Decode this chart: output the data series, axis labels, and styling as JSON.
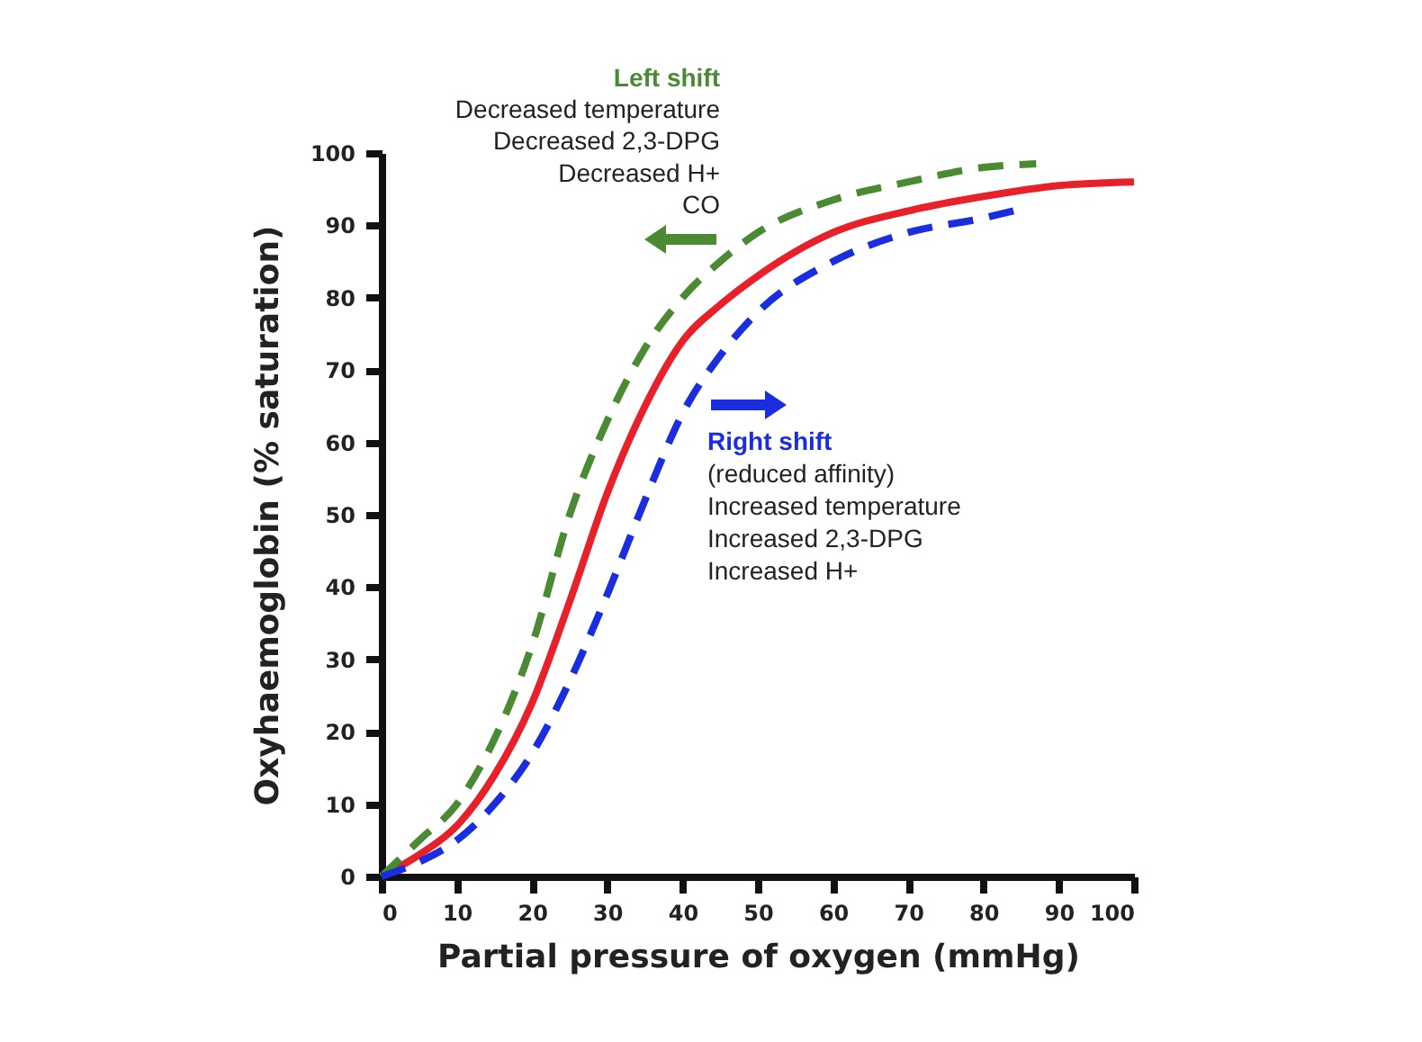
{
  "chart_data": {
    "type": "line",
    "xlabel": "Partial pressure of oxygen (mmHg)",
    "ylabel": "Oxyhaemoglobin (% saturation)",
    "xlim": [
      0,
      100
    ],
    "xticks": [
      0,
      10,
      20,
      30,
      40,
      50,
      60,
      70,
      80,
      90,
      100
    ],
    "ylim": [
      0,
      100
    ],
    "yticks": [
      0,
      10,
      20,
      30,
      40,
      50,
      60,
      70,
      80,
      90,
      100
    ],
    "grid": false,
    "marker": "none",
    "series": [
      {
        "color": "#e8202a",
        "line_style": "solid",
        "x": [
          0,
          5,
          10,
          15,
          20,
          25,
          30,
          35,
          40,
          45,
          50,
          60,
          70,
          80,
          90,
          100
        ],
        "values": [
          0,
          3,
          7,
          14,
          24,
          38,
          53,
          65,
          74,
          79,
          83,
          89,
          92,
          94,
          95.5,
          96
        ]
      },
      {
        "color": "#4a8a32",
        "line_style": "dashed",
        "x": [
          0,
          5,
          10,
          15,
          20,
          25,
          30,
          35,
          40,
          45,
          50,
          60,
          70,
          80,
          87
        ],
        "values": [
          0,
          5,
          10,
          19,
          32,
          50,
          63,
          73,
          80,
          85,
          89,
          93.5,
          96,
          98,
          98.5
        ]
      },
      {
        "color": "#1a2ee0",
        "line_style": "dashed",
        "x": [
          0,
          5,
          10,
          15,
          20,
          25,
          30,
          35,
          40,
          45,
          50,
          60,
          70,
          80,
          84
        ],
        "values": [
          0,
          2,
          5,
          10,
          17,
          27,
          39,
          52,
          64,
          72,
          78,
          85,
          89,
          91,
          92
        ]
      }
    ],
    "annotations": [
      "Left shift",
      "Decreased temperature",
      "Decreased 2,3-DPG",
      "Decreased H+",
      "CO",
      "Right shift",
      "(reduced affinity)",
      "Increased temperature",
      "Increased 2,3-DPG",
      "Increased H+"
    ]
  }
}
